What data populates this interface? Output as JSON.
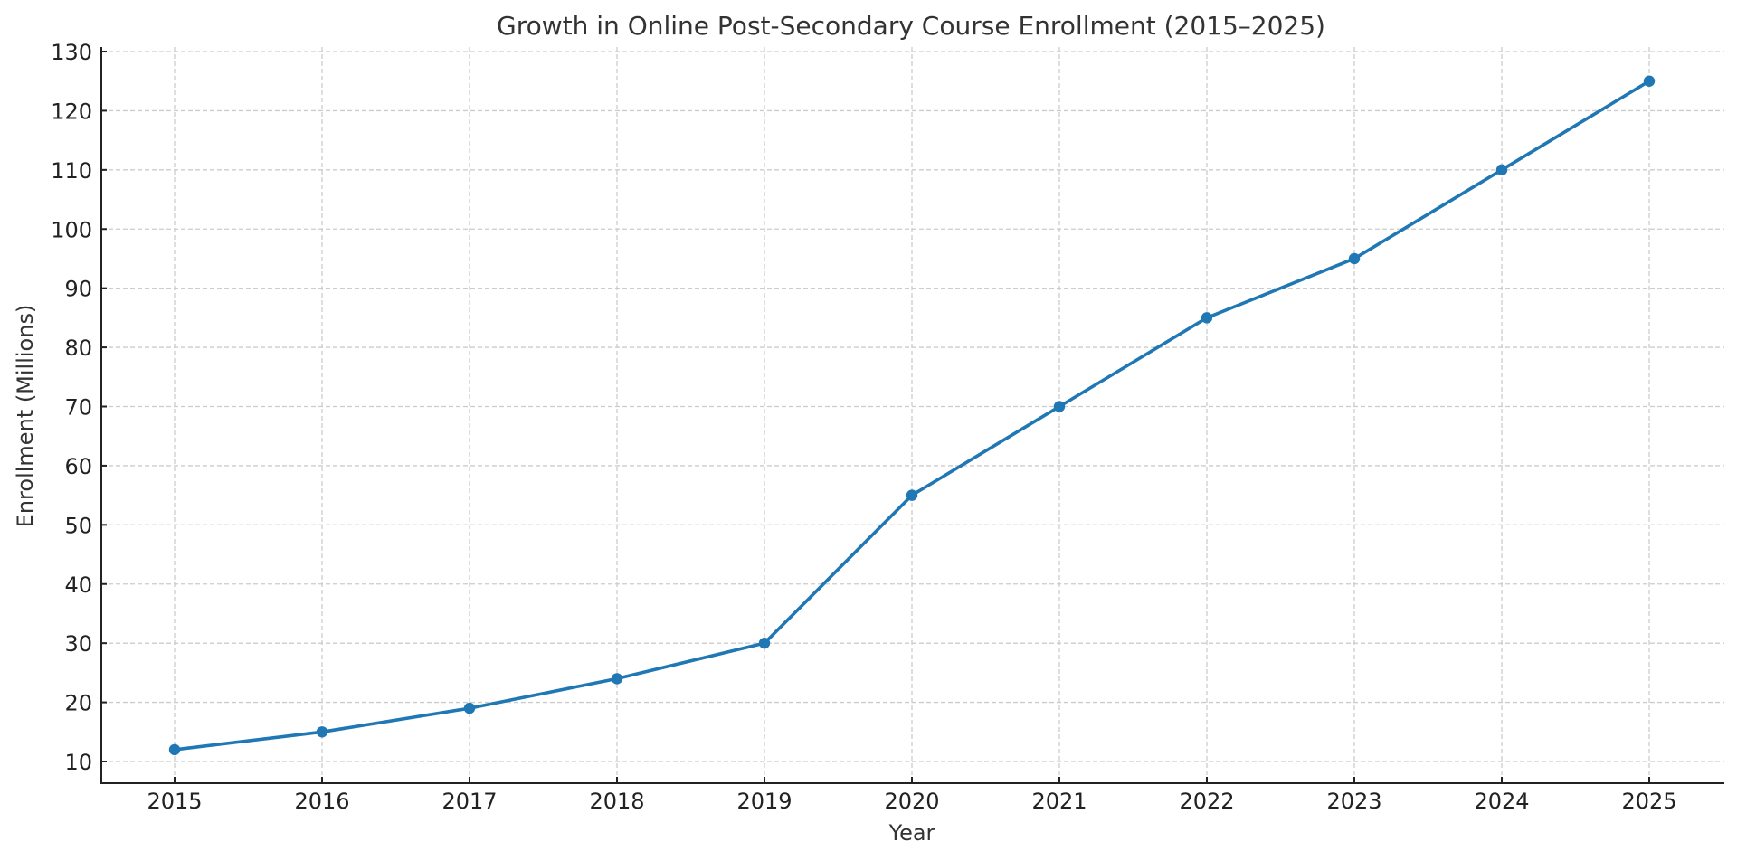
{
  "chart_data": {
    "type": "line",
    "title": "Growth in Online Post-Secondary Course Enrollment (2015–2025)",
    "xlabel": "Year",
    "ylabel": "Enrollment (Millions)",
    "categories": [
      "2015",
      "2016",
      "2017",
      "2018",
      "2019",
      "2020",
      "2021",
      "2022",
      "2023",
      "2024",
      "2025"
    ],
    "series": [
      {
        "name": "Enrollment (Millions)",
        "values": [
          12,
          15,
          19,
          24,
          30,
          55,
          70,
          85,
          95,
          110,
          125
        ],
        "color": "#1f77b4",
        "marker": "circle"
      }
    ],
    "yticks": [
      10,
      20,
      30,
      40,
      50,
      60,
      70,
      80,
      90,
      100,
      110,
      120,
      130
    ],
    "ylim": [
      6.3,
      131
    ],
    "grid": true,
    "grid_style": "dashed",
    "legend": false
  }
}
